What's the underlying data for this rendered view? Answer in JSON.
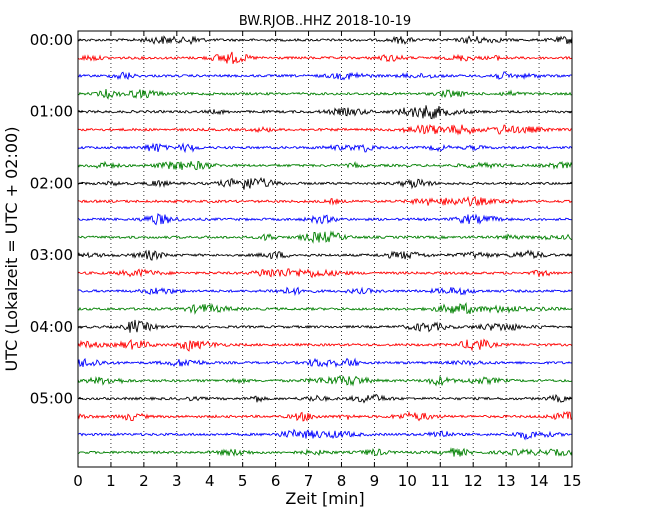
{
  "chart_data": {
    "type": "line",
    "title": "BW.RJOB..HHZ 2018-10-19",
    "xlabel": "Zeit  [min]",
    "ylabel": "UTC (Lokalzeit = UTC + 02:00)",
    "xlim": [
      0,
      15
    ],
    "x_ticks": [
      "0",
      "1",
      "2",
      "3",
      "4",
      "5",
      "6",
      "7",
      "8",
      "9",
      "10",
      "11",
      "12",
      "13",
      "14",
      "15"
    ],
    "y_ticks": [
      "00:00",
      "01:00",
      "02:00",
      "03:00",
      "04:00",
      "05:00"
    ],
    "trace_interval_min": 15,
    "trace_count": 24,
    "trace_colors": [
      "#000000",
      "#ff0000",
      "#0000ff",
      "#008000"
    ],
    "vertical_grid": "dotted",
    "legend": "none"
  }
}
